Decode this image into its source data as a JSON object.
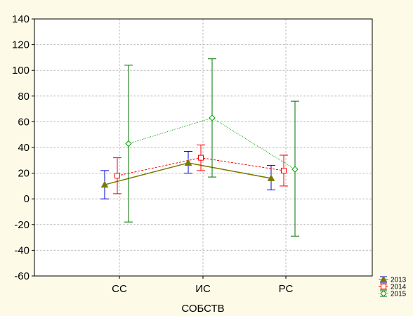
{
  "chart_data": {
    "type": "line",
    "xlabel": "СОБСТВ",
    "ylabel": "",
    "categories": [
      "СС",
      "ИС",
      "РС"
    ],
    "ylim": [
      -60,
      140
    ],
    "yticks": [
      -60,
      -40,
      -20,
      0,
      20,
      40,
      60,
      80,
      100,
      120,
      140
    ],
    "grid": true,
    "legend_position": "bottom-right",
    "series": [
      {
        "name": "2013",
        "marker": "triangle",
        "line_style": "solid",
        "line_color": "#7a7a00",
        "error_color": "#0000d0",
        "values": [
          11,
          28,
          16
        ],
        "lower": [
          0,
          20,
          7
        ],
        "upper": [
          22,
          37,
          26
        ]
      },
      {
        "name": "2014",
        "marker": "square",
        "line_style": "dashed",
        "line_color": "#ff0000",
        "error_color": "#ff0000",
        "values": [
          18,
          32,
          22
        ],
        "lower": [
          4,
          22,
          10
        ],
        "upper": [
          32,
          42,
          34
        ]
      },
      {
        "name": "2015",
        "marker": "diamond",
        "line_style": "dotted",
        "line_color": "#00a000",
        "error_color": "#007000",
        "values": [
          43,
          63,
          23
        ],
        "lower": [
          -18,
          17,
          -29
        ],
        "upper": [
          104,
          109,
          76
        ]
      }
    ]
  }
}
